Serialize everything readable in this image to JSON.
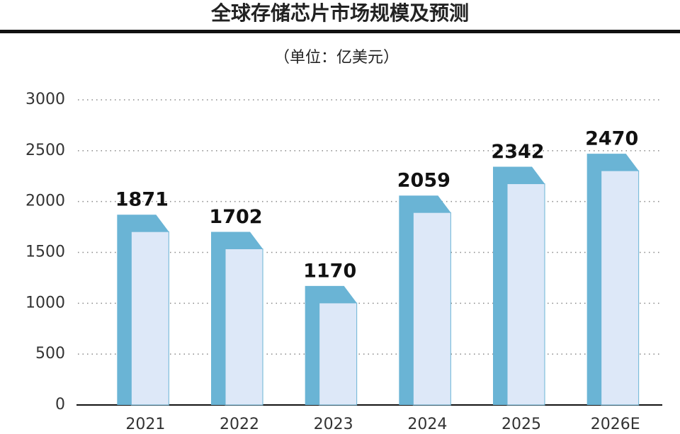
{
  "chart_data": {
    "type": "bar",
    "title": "全球存储芯片市场规模及预测",
    "subtitle": "（单位：亿美元）",
    "categories": [
      "2021",
      "2022",
      "2023",
      "2024",
      "2025",
      "2026E"
    ],
    "values": [
      1871,
      1702,
      1170,
      2059,
      2342,
      2470
    ],
    "color": "#6ab4d5",
    "ylim": [
      0,
      3000
    ],
    "yticks": [
      0,
      500,
      1000,
      1500,
      2000,
      2500,
      3000
    ],
    "grid": true
  }
}
